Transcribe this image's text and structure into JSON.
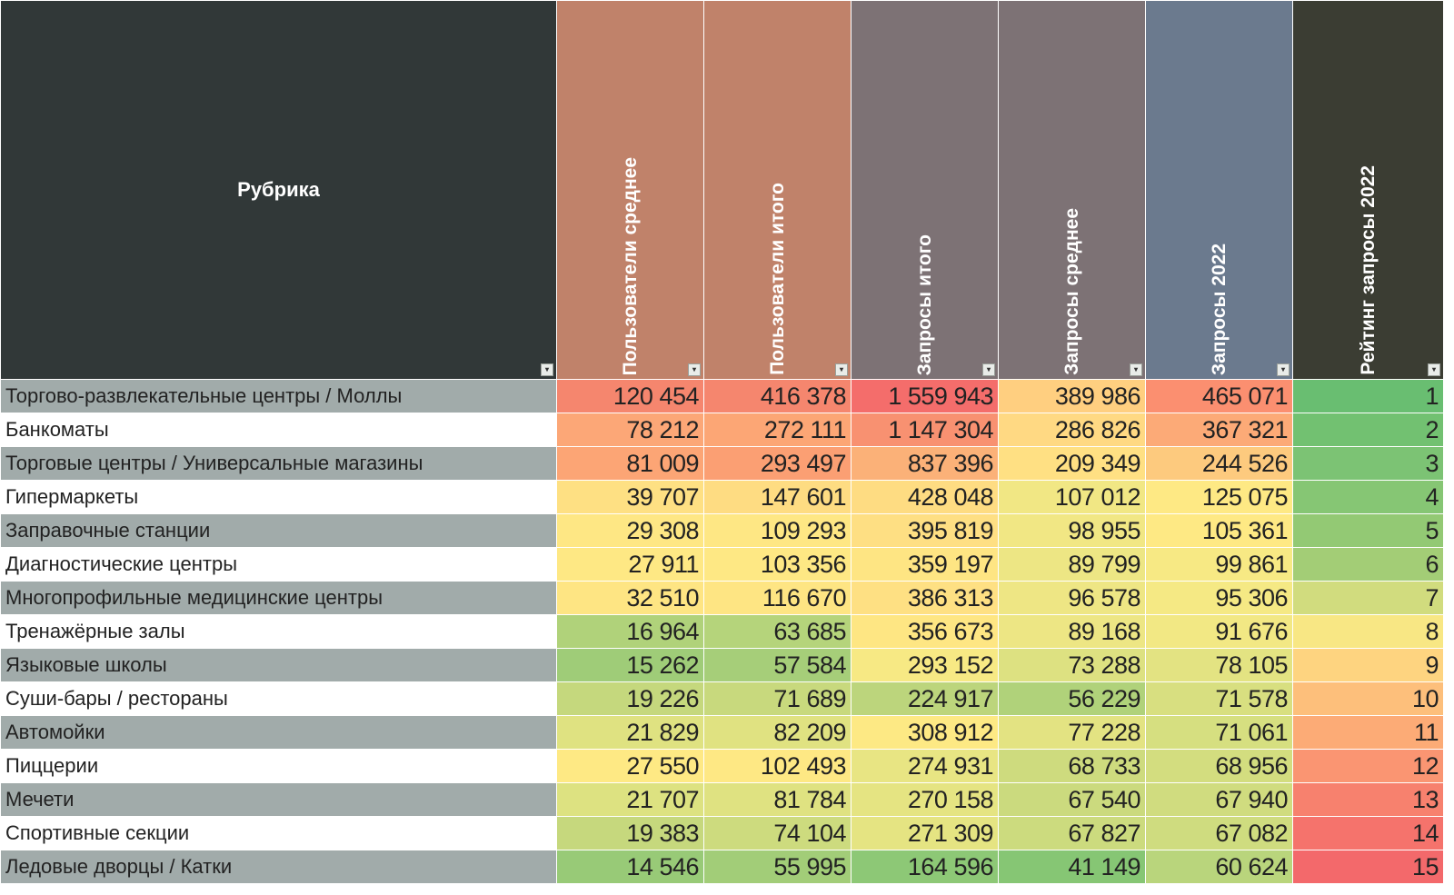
{
  "header": {
    "rubric": "Рубрика",
    "columns": [
      {
        "label": "Пользователи среднее",
        "color": "#c0826a"
      },
      {
        "label": "Пользователи итого",
        "color": "#c0826a"
      },
      {
        "label": "Запросы итого",
        "color": "#7d7275"
      },
      {
        "label": "Запросы среднее",
        "color": "#7d7275"
      },
      {
        "label": "Запросы 2022",
        "color": "#6b7a8e"
      },
      {
        "label": "Рейтинг запросы 2022",
        "color": "#3b3d33"
      }
    ]
  },
  "rows": [
    {
      "name": "Торгово-развлекательные центры / Моллы",
      "values": [
        "120 454",
        "416 378",
        "1 559 943",
        "389 986",
        "465 071",
        "1"
      ],
      "colors": [
        "#f5866e",
        "#f5866e",
        "#f46d6b",
        "#ffcf80",
        "#fb8f70",
        "#69be71"
      ]
    },
    {
      "name": "Банкоматы",
      "values": [
        "78 212",
        "272 111",
        "1 147 304",
        "286 826",
        "367 321",
        "2"
      ],
      "colors": [
        "#fca777",
        "#fca675",
        "#f89171",
        "#ffd983",
        "#fcaa77",
        "#72c171"
      ]
    },
    {
      "name": "Торговые центры / Универсальные магазины",
      "values": [
        "81 009",
        "293 497",
        "837 396",
        "209 349",
        "244 526",
        "3"
      ],
      "colors": [
        "#fca575",
        "#fb9f73",
        "#fbb178",
        "#ffe083",
        "#fdca7e",
        "#7cc374"
      ]
    },
    {
      "name": "Гипермаркеты",
      "values": [
        "39 707",
        "147 601",
        "428 048",
        "107 012",
        "125 075",
        "4"
      ],
      "colors": [
        "#fee083",
        "#fedc82",
        "#fedc82",
        "#f1e784",
        "#fee984",
        "#86c674"
      ]
    },
    {
      "name": "Заправочные станции",
      "values": [
        "29 308",
        "109 293",
        "395 819",
        "98 955",
        "105 361",
        "5"
      ],
      "colors": [
        "#fee784",
        "#fee784",
        "#fedf83",
        "#f1e784",
        "#fee984",
        "#93c974"
      ]
    },
    {
      "name": "Диагностические центры",
      "values": [
        "27 911",
        "103 356",
        "359 197",
        "89 799",
        "99 861",
        "6"
      ],
      "colors": [
        "#fee884",
        "#fee884",
        "#fee583",
        "#ede684",
        "#f7e984",
        "#a3cd76"
      ]
    },
    {
      "name": "Многопрофильные медицинские центры",
      "values": [
        "32 510",
        "116 670",
        "386 313",
        "96 578",
        "95 306",
        "7"
      ],
      "colors": [
        "#fee583",
        "#fee583",
        "#fee083",
        "#eee684",
        "#f5e984",
        "#d1dc7e"
      ]
    },
    {
      "name": "Тренажёрные залы",
      "values": [
        "16 964",
        "63 685",
        "356 673",
        "89 168",
        "91 676",
        "8"
      ],
      "colors": [
        "#b0d27a",
        "#b5d47b",
        "#fee683",
        "#ede684",
        "#f2e884",
        "#f8e784"
      ]
    },
    {
      "name": "Языковые школы",
      "values": [
        "15 262",
        "57 584",
        "293 152",
        "73 288",
        "78 105",
        "9"
      ],
      "colors": [
        "#9fcc78",
        "#a6ce79",
        "#f7e984",
        "#dde181",
        "#e3e382",
        "#fed480"
      ]
    },
    {
      "name": "Суши-бары / рестораны",
      "values": [
        "19 226",
        "71 689",
        "224 917",
        "56 229",
        "71 578",
        "10"
      ],
      "colors": [
        "#c5d87d",
        "#c8d97d",
        "#bcd57c",
        "#b0d27a",
        "#d8df80",
        "#fdbf7b"
      ]
    },
    {
      "name": "Автомойки",
      "values": [
        "21 829",
        "82 209",
        "308 912",
        "77 228",
        "71 061",
        "11"
      ],
      "colors": [
        "#dfe281",
        "#e0e281",
        "#fde984",
        "#e3e382",
        "#d6df80",
        "#fcab76"
      ]
    },
    {
      "name": "Пиццерии",
      "values": [
        "27 550",
        "102 493",
        "274 931",
        "68 733",
        "68 956",
        "12"
      ],
      "colors": [
        "#fee984",
        "#fee884",
        "#e8e583",
        "#cedb7e",
        "#d3dd7f",
        "#fa9572"
      ]
    },
    {
      "name": "Мечети",
      "values": [
        "21 707",
        "81 784",
        "270 158",
        "67 540",
        "67 940",
        "13"
      ],
      "colors": [
        "#dde281",
        "#dfe281",
        "#e5e482",
        "#cbda7e",
        "#d0dc7f",
        "#f7816e"
      ]
    },
    {
      "name": "Спортивные секции",
      "values": [
        "19 383",
        "74 104",
        "271 309",
        "67 827",
        "67 082",
        "14"
      ],
      "colors": [
        "#c6d87d",
        "#cddb7e",
        "#e5e482",
        "#ccdb7e",
        "#cfdc7f",
        "#f5736c"
      ]
    },
    {
      "name": "Ледовые дворцы / Катки",
      "values": [
        "14 546",
        "55 995",
        "164 596",
        "41 149",
        "60 624",
        "15"
      ],
      "colors": [
        "#98ca77",
        "#a2cd78",
        "#8dc876",
        "#86c674",
        "#b9d57c",
        "#f3696b"
      ]
    }
  ]
}
